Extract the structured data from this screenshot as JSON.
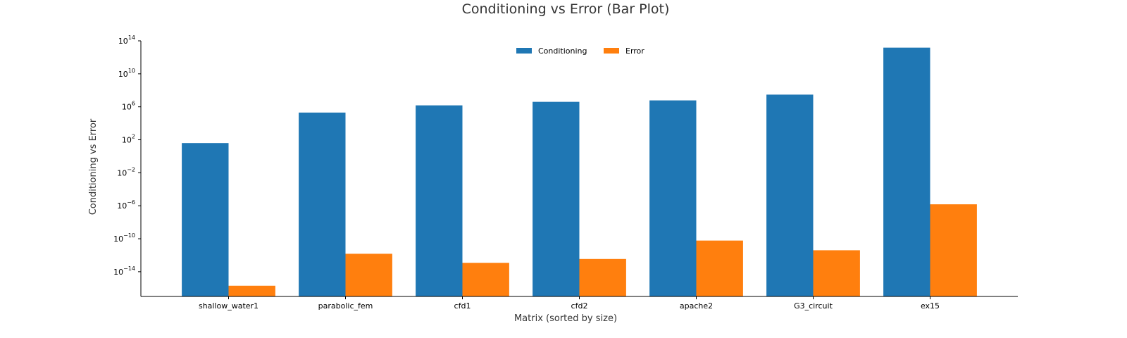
{
  "chart_data": {
    "type": "bar",
    "title": "Conditioning vs Error (Bar Plot)",
    "xlabel": "Matrix (sorted by size)",
    "ylabel": "Conditioning vs Error",
    "yscale": "log",
    "ylim": [
      1e-17,
      100000000000000.0
    ],
    "yticks": [
      {
        "base": "10",
        "exp": "14"
      },
      {
        "base": "10",
        "exp": "10"
      },
      {
        "base": "10",
        "exp": "6"
      },
      {
        "base": "10",
        "exp": "2"
      },
      {
        "base": "10",
        "exp": "−2"
      },
      {
        "base": "10",
        "exp": "−6"
      },
      {
        "base": "10",
        "exp": "−10"
      },
      {
        "base": "10",
        "exp": "−14"
      }
    ],
    "categories": [
      "shallow_water1",
      "parabolic_fem",
      "cfd1",
      "cfd2",
      "apache2",
      "G3_circuit",
      "ex15"
    ],
    "series": [
      {
        "name": "Conditioning",
        "color": "#1f77b4",
        "values": [
          40,
          200000.0,
          1500000.0,
          4000000.0,
          6000000.0,
          30000000.0,
          15000000000000.0
        ]
      },
      {
        "name": "Error",
        "color": "#ff7f0e",
        "values": [
          2e-16,
          1.5e-12,
          1.2e-13,
          3.5e-13,
          6e-11,
          4e-12,
          1.5e-06
        ]
      }
    ],
    "legend": "top-center",
    "grid": false
  }
}
